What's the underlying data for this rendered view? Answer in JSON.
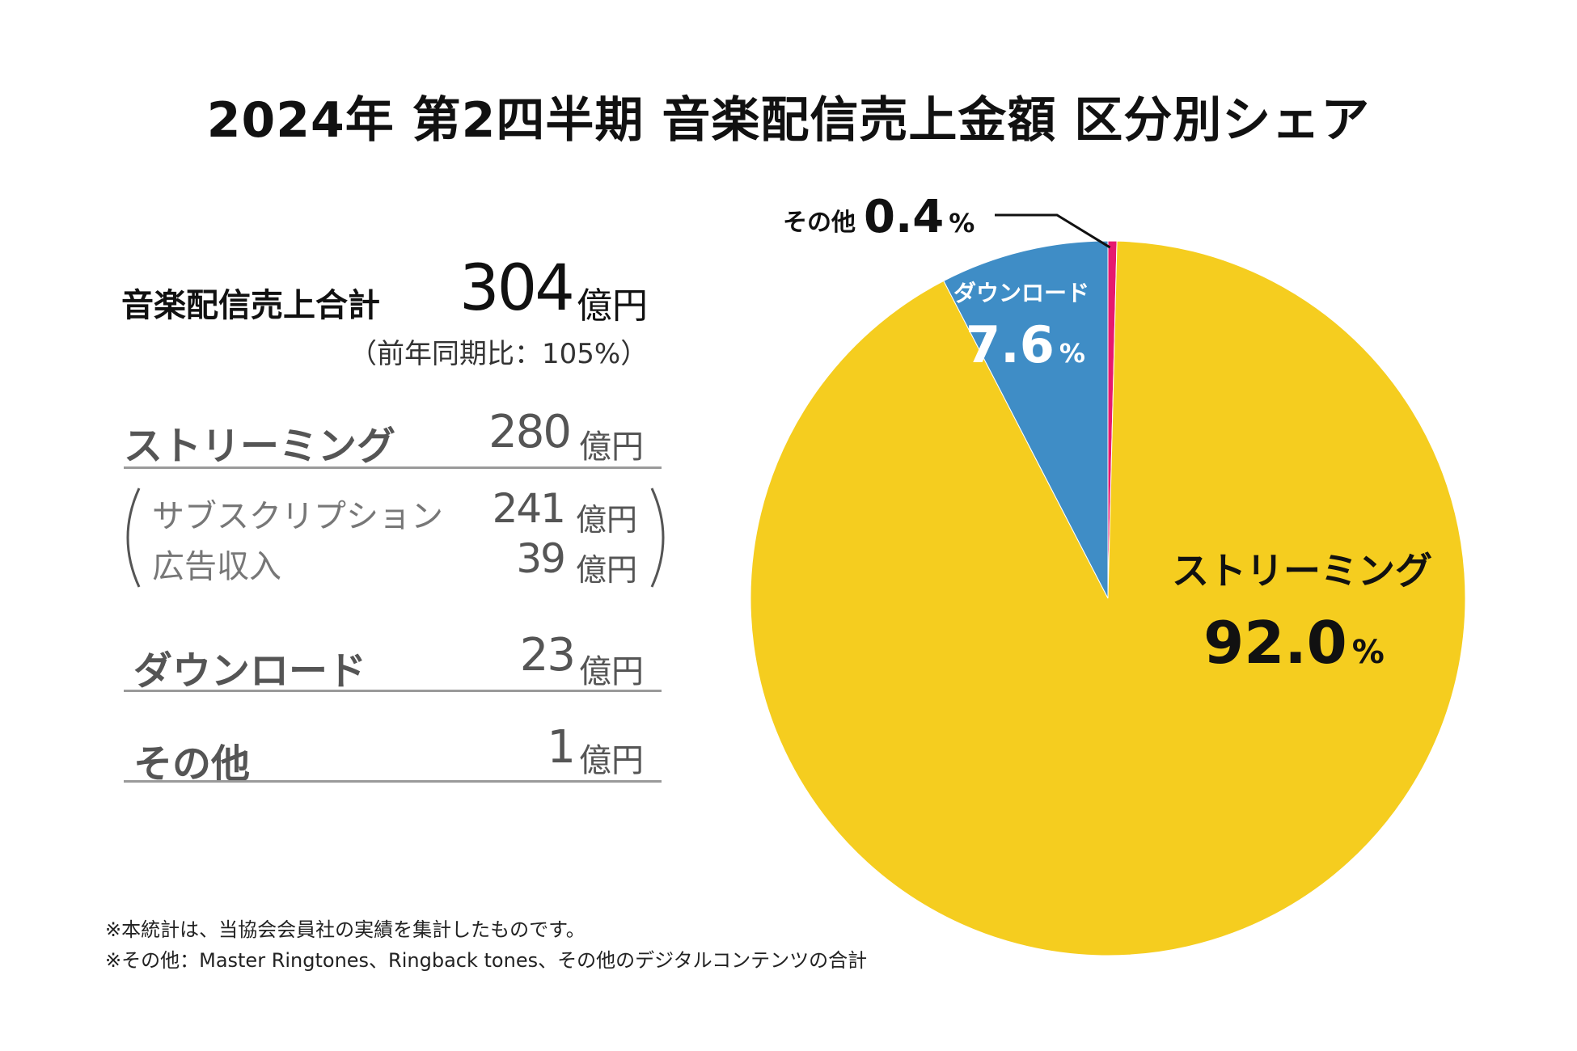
{
  "title": "2024年 第2四半期 音楽配信売上金額 区分別シェア",
  "summary": {
    "total_label": "音楽配信売上合計",
    "total_value": "304",
    "total_unit": "億円",
    "yoy": "（前年同期比：105%）"
  },
  "breakdown": [
    {
      "label": "ストリーミング",
      "value": "280",
      "unit": "億円"
    },
    {
      "label": "ダウンロード",
      "value": "23",
      "unit": "億円"
    },
    {
      "label": "その他",
      "value": "1",
      "unit": "億円"
    }
  ],
  "sub_breakdown": [
    {
      "label": "サブスクリプション",
      "value": "241",
      "unit": "億円"
    },
    {
      "label": "広告収入",
      "value": "39",
      "unit": "億円"
    }
  ],
  "notes": [
    "※本統計は、当協会会員社の実績を集計したものです。",
    "※その他：Master Ringtones、Ringback tones、その他のデジタルコンテンツの合計"
  ],
  "chart_data": {
    "type": "pie",
    "title": "2024年 第2四半期 音楽配信売上金額 区分別シェア",
    "slices": [
      {
        "label": "その他",
        "value": 0.4,
        "display": "0.4",
        "unit": "%",
        "color": "#e6196f"
      },
      {
        "label": "ストリーミング",
        "value": 92.0,
        "display": "92.0",
        "unit": "%",
        "color": "#f5cd1f"
      },
      {
        "label": "ダウンロード",
        "value": 7.6,
        "display": "7.6",
        "unit": "%",
        "color": "#3f8dc6"
      }
    ],
    "start": "12 o'clock",
    "direction": "clockwise"
  }
}
